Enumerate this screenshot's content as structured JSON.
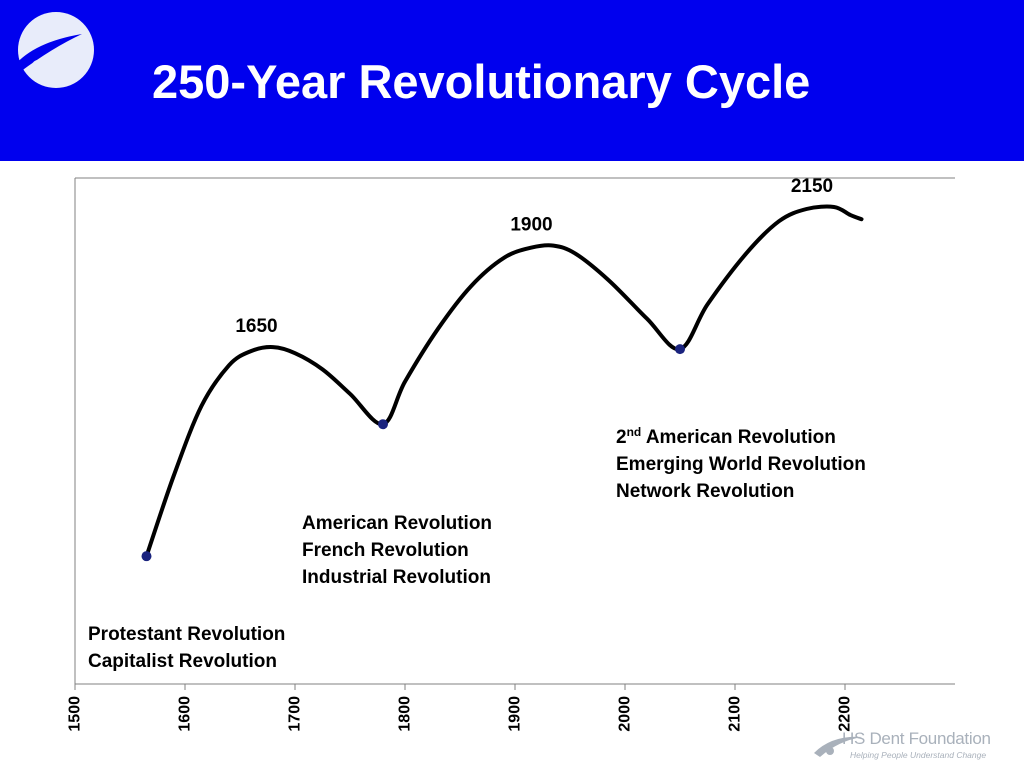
{
  "title": "250-Year Revolutionary Cycle",
  "colors": {
    "header_bg": "#0000ee",
    "curve": "#000000",
    "marker": "#1a237e",
    "footer_text": "#a9b1bb"
  },
  "icons": {
    "header_logo": "circle-orbit-logo-icon",
    "footer_logo": "orbit-swoosh-logo-icon"
  },
  "footer": {
    "name": "HS Dent Foundation",
    "tagline": "Helping People Understand Change"
  },
  "annotations": {
    "group1": {
      "line1": "Protestant Revolution",
      "line2": "Capitalist Revolution"
    },
    "group2": {
      "line1": "American Revolution",
      "line2": "French Revolution",
      "line3": "Industrial Revolution"
    },
    "group3": {
      "line1_prefix": "2",
      "line1_sup": "nd",
      "line1_rest": " American Revolution",
      "line2": "Emerging World Revolution",
      "line3": "Network Revolution"
    }
  },
  "chart_data": {
    "type": "line",
    "title": "250-Year Revolutionary Cycle",
    "xlabel": "",
    "ylabel": "",
    "xlim": [
      1500,
      2300
    ],
    "ylim": [
      0,
      100
    ],
    "xticks": [
      1500,
      1600,
      1700,
      1800,
      1900,
      2000,
      2100,
      2200
    ],
    "xtick_labels": [
      "1500",
      "1600",
      "1700",
      "1800",
      "1900",
      "2000",
      "2100",
      "2200"
    ],
    "grid": false,
    "legend": "none",
    "series": [
      {
        "points": [
          [
            1565,
            14
          ],
          [
            1590,
            34
          ],
          [
            1615,
            51
          ],
          [
            1640,
            61
          ],
          [
            1660,
            64.5
          ],
          [
            1680,
            65.5
          ],
          [
            1700,
            64
          ],
          [
            1725,
            60
          ],
          [
            1750,
            54
          ],
          [
            1780,
            46.5
          ],
          [
            1800,
            57
          ],
          [
            1830,
            70
          ],
          [
            1860,
            80.5
          ],
          [
            1890,
            87.5
          ],
          [
            1915,
            90
          ],
          [
            1935,
            90.5
          ],
          [
            1955,
            88.5
          ],
          [
            1985,
            82
          ],
          [
            2020,
            72.5
          ],
          [
            2050,
            65
          ],
          [
            2075,
            76
          ],
          [
            2110,
            88.5
          ],
          [
            2140,
            96.5
          ],
          [
            2165,
            99.5
          ],
          [
            2190,
            100
          ],
          [
            2205,
            98
          ],
          [
            2215,
            97
          ]
        ]
      }
    ],
    "markers": [
      {
        "x": 1565,
        "y": 14
      },
      {
        "x": 1780,
        "y": 46.5
      },
      {
        "x": 2050,
        "y": 65
      }
    ],
    "peak_labels": [
      {
        "x": 1665,
        "y": 65.5,
        "text": "1650"
      },
      {
        "x": 1915,
        "y": 90.5,
        "text": "1900"
      },
      {
        "x": 2170,
        "y": 100,
        "text": "2150"
      }
    ]
  }
}
